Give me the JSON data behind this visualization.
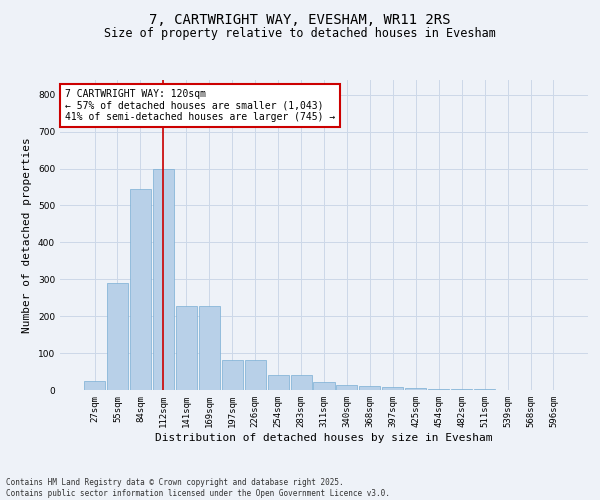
{
  "title": "7, CARTWRIGHT WAY, EVESHAM, WR11 2RS",
  "subtitle": "Size of property relative to detached houses in Evesham",
  "xlabel": "Distribution of detached houses by size in Evesham",
  "ylabel": "Number of detached properties",
  "categories": [
    "27sqm",
    "55sqm",
    "84sqm",
    "112sqm",
    "141sqm",
    "169sqm",
    "197sqm",
    "226sqm",
    "254sqm",
    "283sqm",
    "311sqm",
    "340sqm",
    "368sqm",
    "397sqm",
    "425sqm",
    "454sqm",
    "482sqm",
    "511sqm",
    "539sqm",
    "568sqm",
    "596sqm"
  ],
  "values": [
    25,
    290,
    545,
    600,
    228,
    228,
    80,
    80,
    42,
    42,
    22,
    13,
    10,
    7,
    5,
    3,
    2,
    2,
    1,
    1,
    1
  ],
  "bar_color": "#b8d0e8",
  "bar_edge_color": "#7aaed4",
  "grid_color": "#ccd8e8",
  "background_color": "#eef2f8",
  "annotation_box_text": "7 CARTWRIGHT WAY: 120sqm\n← 57% of detached houses are smaller (1,043)\n41% of semi-detached houses are larger (745) →",
  "annotation_box_color": "#ffffff",
  "annotation_box_edge_color": "#cc0000",
  "vline_color": "#cc0000",
  "vline_x": 3.0,
  "ylim": [
    0,
    840
  ],
  "yticks": [
    0,
    100,
    200,
    300,
    400,
    500,
    600,
    700,
    800
  ],
  "footer_line1": "Contains HM Land Registry data © Crown copyright and database right 2025.",
  "footer_line2": "Contains public sector information licensed under the Open Government Licence v3.0.",
  "title_fontsize": 10,
  "subtitle_fontsize": 8.5,
  "tick_fontsize": 6.5,
  "xlabel_fontsize": 8,
  "ylabel_fontsize": 8,
  "annotation_fontsize": 7,
  "footer_fontsize": 5.5
}
